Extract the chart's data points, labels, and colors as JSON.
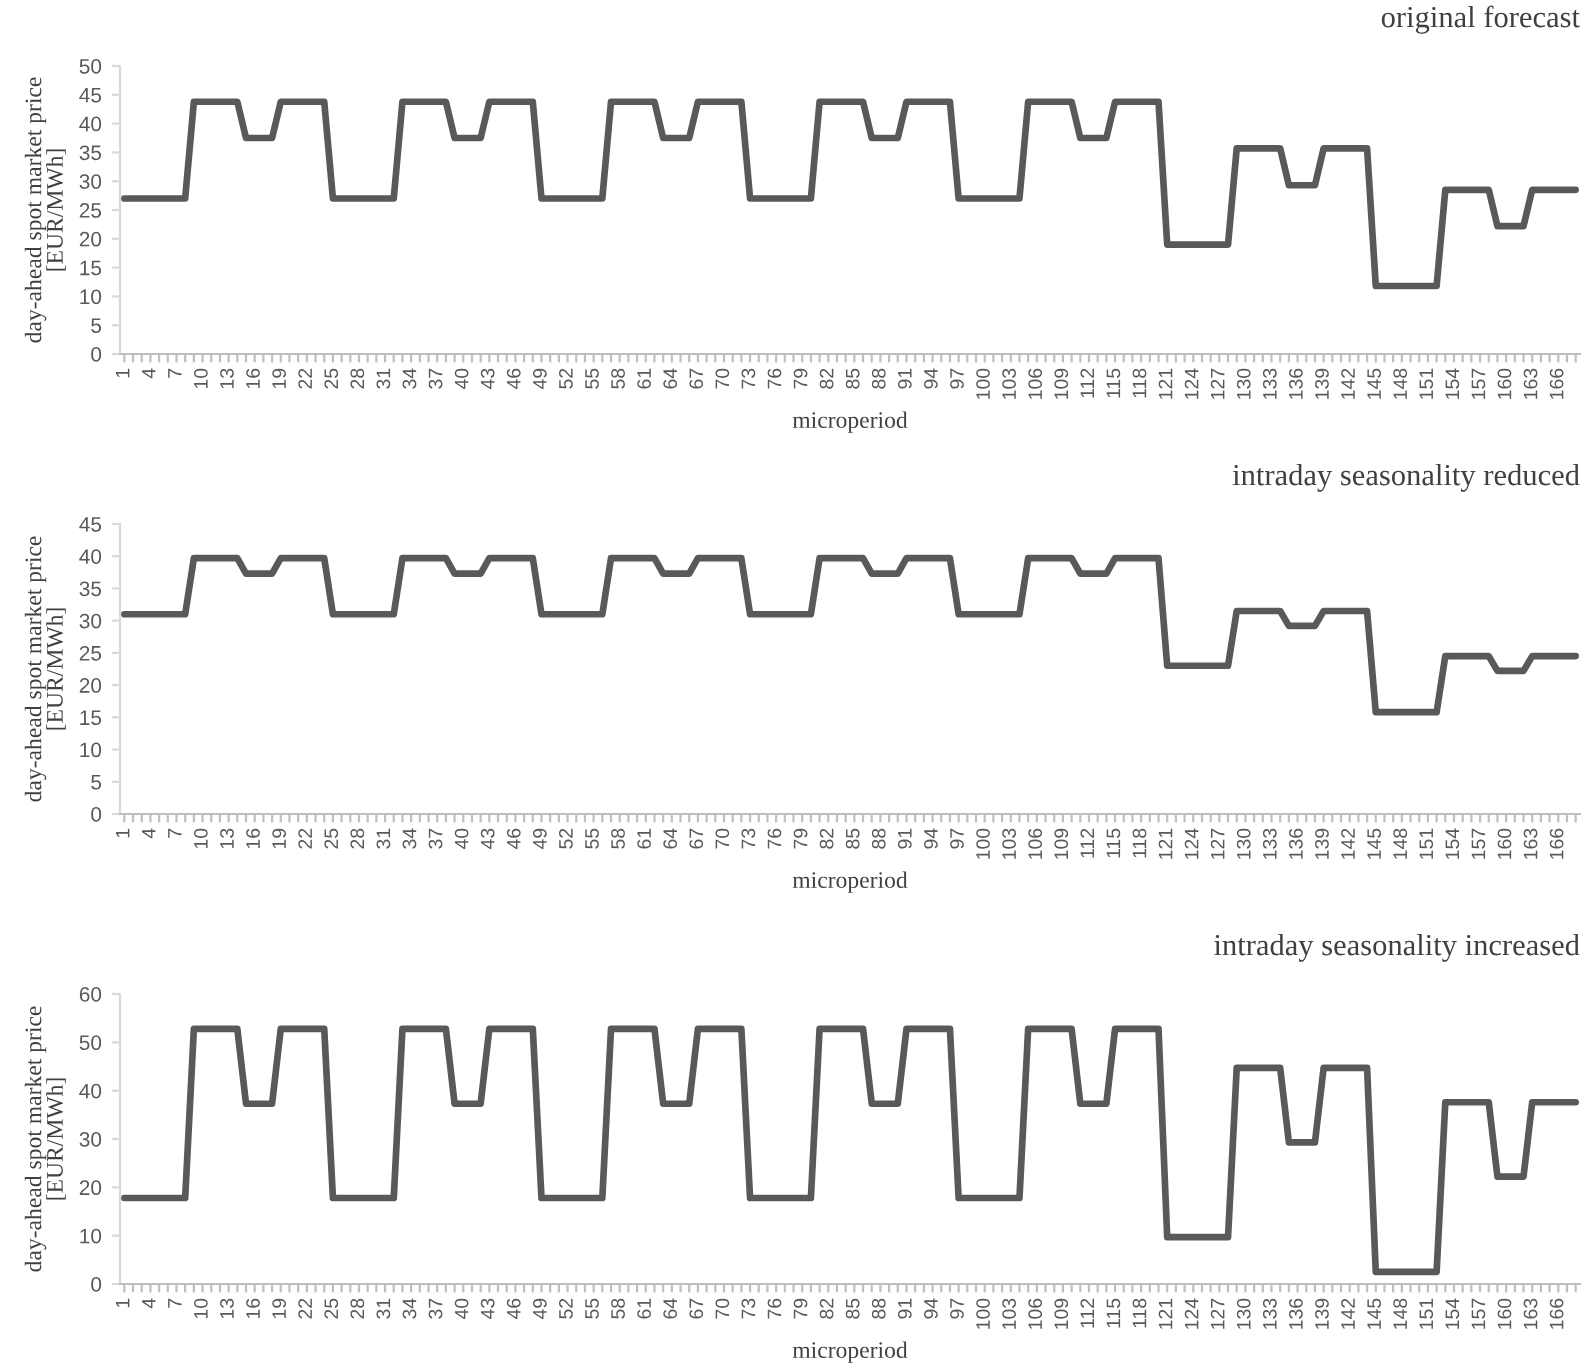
{
  "chart_data": [
    {
      "type": "line",
      "title": "original forecast",
      "xlabel": "microperiod",
      "ylabel": "day-ahead spot market price\n[EUR/MWh]",
      "categories": [
        "1",
        null,
        null,
        "4",
        null,
        null,
        "7",
        null,
        null,
        "10",
        null,
        null,
        "13",
        null,
        null,
        "16",
        null,
        null,
        "19",
        null,
        null,
        "22",
        null,
        null,
        "25",
        null,
        null,
        "28",
        null,
        null,
        "31",
        null,
        null,
        "34",
        null,
        null,
        "37",
        null,
        null,
        "40",
        null,
        null,
        "43",
        null,
        null,
        "46",
        null,
        null,
        "49",
        null,
        null,
        "52",
        null,
        null,
        "55",
        null,
        null,
        "58",
        null,
        null,
        "61",
        null,
        null,
        "64",
        null,
        null,
        "67",
        null,
        null,
        "70",
        null,
        null,
        "73",
        null,
        null,
        "76",
        null,
        null,
        "79",
        null,
        null,
        "82",
        null,
        null,
        "85",
        null,
        null,
        "88",
        null,
        null,
        "91",
        null,
        null,
        "94",
        null,
        null,
        "97",
        null,
        null,
        "100",
        null,
        null,
        "103",
        null,
        null,
        "106",
        null,
        null,
        "109",
        null,
        null,
        "112",
        null,
        null,
        "115",
        null,
        null,
        "118",
        null,
        null,
        "121",
        null,
        null,
        "124",
        null,
        null,
        "127",
        null,
        null,
        "130",
        null,
        null,
        "133",
        null,
        null,
        "136",
        null,
        null,
        "139",
        null,
        null,
        "142",
        null,
        null,
        "145",
        null,
        null,
        "148",
        null,
        null,
        "151",
        null,
        null,
        "154",
        null,
        null,
        "157",
        null,
        null,
        "160",
        null,
        null,
        "163",
        null,
        null,
        "166",
        null,
        null
      ],
      "series": [
        {
          "color": "#595959",
          "values": [
            27,
            27,
            27,
            27,
            27,
            27,
            27,
            27,
            43.8,
            43.8,
            43.8,
            43.8,
            43.8,
            43.8,
            37.5,
            37.5,
            37.5,
            37.5,
            43.8,
            43.8,
            43.8,
            43.8,
            43.8,
            43.8,
            27,
            27,
            27,
            27,
            27,
            27,
            27,
            27,
            43.8,
            43.8,
            43.8,
            43.8,
            43.8,
            43.8,
            37.5,
            37.5,
            37.5,
            37.5,
            43.8,
            43.8,
            43.8,
            43.8,
            43.8,
            43.8,
            27,
            27,
            27,
            27,
            27,
            27,
            27,
            27,
            43.8,
            43.8,
            43.8,
            43.8,
            43.8,
            43.8,
            37.5,
            37.5,
            37.5,
            37.5,
            43.8,
            43.8,
            43.8,
            43.8,
            43.8,
            43.8,
            27,
            27,
            27,
            27,
            27,
            27,
            27,
            27,
            43.8,
            43.8,
            43.8,
            43.8,
            43.8,
            43.8,
            37.5,
            37.5,
            37.5,
            37.5,
            43.8,
            43.8,
            43.8,
            43.8,
            43.8,
            43.8,
            27,
            27,
            27,
            27,
            27,
            27,
            27,
            27,
            43.8,
            43.8,
            43.8,
            43.8,
            43.8,
            43.8,
            37.5,
            37.5,
            37.5,
            37.5,
            43.8,
            43.8,
            43.8,
            43.8,
            43.8,
            43.8,
            19,
            19,
            19,
            19,
            19,
            19,
            19,
            19,
            35.7,
            35.7,
            35.7,
            35.7,
            35.7,
            35.7,
            29.3,
            29.3,
            29.3,
            29.3,
            35.7,
            35.7,
            35.7,
            35.7,
            35.7,
            35.7,
            11.8,
            11.8,
            11.8,
            11.8,
            11.8,
            11.8,
            11.8,
            11.8,
            28.5,
            28.5,
            28.5,
            28.5,
            28.5,
            28.5,
            22.2,
            22.2,
            22.2,
            22.2,
            28.5,
            28.5,
            28.5,
            28.5,
            28.5,
            28.5
          ]
        }
      ],
      "ylim": [
        0,
        50
      ],
      "yticks": [
        0,
        5,
        10,
        15,
        20,
        25,
        30,
        35,
        40,
        45,
        50
      ]
    },
    {
      "type": "line",
      "title": "intraday seasonality reduced",
      "xlabel": "microperiod",
      "ylabel": "day-ahead spot market price\n[EUR/MWh]",
      "categories": [
        "1",
        null,
        null,
        "4",
        null,
        null,
        "7",
        null,
        null,
        "10",
        null,
        null,
        "13",
        null,
        null,
        "16",
        null,
        null,
        "19",
        null,
        null,
        "22",
        null,
        null,
        "25",
        null,
        null,
        "28",
        null,
        null,
        "31",
        null,
        null,
        "34",
        null,
        null,
        "37",
        null,
        null,
        "40",
        null,
        null,
        "43",
        null,
        null,
        "46",
        null,
        null,
        "49",
        null,
        null,
        "52",
        null,
        null,
        "55",
        null,
        null,
        "58",
        null,
        null,
        "61",
        null,
        null,
        "64",
        null,
        null,
        "67",
        null,
        null,
        "70",
        null,
        null,
        "73",
        null,
        null,
        "76",
        null,
        null,
        "79",
        null,
        null,
        "82",
        null,
        null,
        "85",
        null,
        null,
        "88",
        null,
        null,
        "91",
        null,
        null,
        "94",
        null,
        null,
        "97",
        null,
        null,
        "100",
        null,
        null,
        "103",
        null,
        null,
        "106",
        null,
        null,
        "109",
        null,
        null,
        "112",
        null,
        null,
        "115",
        null,
        null,
        "118",
        null,
        null,
        "121",
        null,
        null,
        "124",
        null,
        null,
        "127",
        null,
        null,
        "130",
        null,
        null,
        "133",
        null,
        null,
        "136",
        null,
        null,
        "139",
        null,
        null,
        "142",
        null,
        null,
        "145",
        null,
        null,
        "148",
        null,
        null,
        "151",
        null,
        null,
        "154",
        null,
        null,
        "157",
        null,
        null,
        "160",
        null,
        null,
        "163",
        null,
        null,
        "166",
        null,
        null
      ],
      "series": [
        {
          "color": "#595959",
          "values": [
            31,
            31,
            31,
            31,
            31,
            31,
            31,
            31,
            39.7,
            39.7,
            39.7,
            39.7,
            39.7,
            39.7,
            37.3,
            37.3,
            37.3,
            37.3,
            39.7,
            39.7,
            39.7,
            39.7,
            39.7,
            39.7,
            31,
            31,
            31,
            31,
            31,
            31,
            31,
            31,
            39.7,
            39.7,
            39.7,
            39.7,
            39.7,
            39.7,
            37.3,
            37.3,
            37.3,
            37.3,
            39.7,
            39.7,
            39.7,
            39.7,
            39.7,
            39.7,
            31,
            31,
            31,
            31,
            31,
            31,
            31,
            31,
            39.7,
            39.7,
            39.7,
            39.7,
            39.7,
            39.7,
            37.3,
            37.3,
            37.3,
            37.3,
            39.7,
            39.7,
            39.7,
            39.7,
            39.7,
            39.7,
            31,
            31,
            31,
            31,
            31,
            31,
            31,
            31,
            39.7,
            39.7,
            39.7,
            39.7,
            39.7,
            39.7,
            37.3,
            37.3,
            37.3,
            37.3,
            39.7,
            39.7,
            39.7,
            39.7,
            39.7,
            39.7,
            31,
            31,
            31,
            31,
            31,
            31,
            31,
            31,
            39.7,
            39.7,
            39.7,
            39.7,
            39.7,
            39.7,
            37.3,
            37.3,
            37.3,
            37.3,
            39.7,
            39.7,
            39.7,
            39.7,
            39.7,
            39.7,
            23,
            23,
            23,
            23,
            23,
            23,
            23,
            23,
            31.5,
            31.5,
            31.5,
            31.5,
            31.5,
            31.5,
            29.2,
            29.2,
            29.2,
            29.2,
            31.5,
            31.5,
            31.5,
            31.5,
            31.5,
            31.5,
            15.8,
            15.8,
            15.8,
            15.8,
            15.8,
            15.8,
            15.8,
            15.8,
            24.5,
            24.5,
            24.5,
            24.5,
            24.5,
            24.5,
            22.2,
            22.2,
            22.2,
            22.2,
            24.5,
            24.5,
            24.5,
            24.5,
            24.5,
            24.5
          ]
        }
      ],
      "ylim": [
        0,
        45
      ],
      "yticks": [
        0,
        5,
        10,
        15,
        20,
        25,
        30,
        35,
        40,
        45
      ]
    },
    {
      "type": "line",
      "title": "intraday seasonality increased",
      "xlabel": "microperiod",
      "ylabel": "day-ahead spot market price\n[EUR/MWh]",
      "categories": [
        "1",
        null,
        null,
        "4",
        null,
        null,
        "7",
        null,
        null,
        "10",
        null,
        null,
        "13",
        null,
        null,
        "16",
        null,
        null,
        "19",
        null,
        null,
        "22",
        null,
        null,
        "25",
        null,
        null,
        "28",
        null,
        null,
        "31",
        null,
        null,
        "34",
        null,
        null,
        "37",
        null,
        null,
        "40",
        null,
        null,
        "43",
        null,
        null,
        "46",
        null,
        null,
        "49",
        null,
        null,
        "52",
        null,
        null,
        "55",
        null,
        null,
        "58",
        null,
        null,
        "61",
        null,
        null,
        "64",
        null,
        null,
        "67",
        null,
        null,
        "70",
        null,
        null,
        "73",
        null,
        null,
        "76",
        null,
        null,
        "79",
        null,
        null,
        "82",
        null,
        null,
        "85",
        null,
        null,
        "88",
        null,
        null,
        "91",
        null,
        null,
        "94",
        null,
        null,
        "97",
        null,
        null,
        "100",
        null,
        null,
        "103",
        null,
        null,
        "106",
        null,
        null,
        "109",
        null,
        null,
        "112",
        null,
        null,
        "115",
        null,
        null,
        "118",
        null,
        null,
        "121",
        null,
        null,
        "124",
        null,
        null,
        "127",
        null,
        null,
        "130",
        null,
        null,
        "133",
        null,
        null,
        "136",
        null,
        null,
        "139",
        null,
        null,
        "142",
        null,
        null,
        "145",
        null,
        null,
        "148",
        null,
        null,
        "151",
        null,
        null,
        "154",
        null,
        null,
        "157",
        null,
        null,
        "160",
        null,
        null,
        "163",
        null,
        null,
        "166",
        null,
        null
      ],
      "series": [
        {
          "color": "#595959",
          "values": [
            17.8,
            17.8,
            17.8,
            17.8,
            17.8,
            17.8,
            17.8,
            17.8,
            52.8,
            52.8,
            52.8,
            52.8,
            52.8,
            52.8,
            37.3,
            37.3,
            37.3,
            37.3,
            52.8,
            52.8,
            52.8,
            52.8,
            52.8,
            52.8,
            17.8,
            17.8,
            17.8,
            17.8,
            17.8,
            17.8,
            17.8,
            17.8,
            52.8,
            52.8,
            52.8,
            52.8,
            52.8,
            52.8,
            37.3,
            37.3,
            37.3,
            37.3,
            52.8,
            52.8,
            52.8,
            52.8,
            52.8,
            52.8,
            17.8,
            17.8,
            17.8,
            17.8,
            17.8,
            17.8,
            17.8,
            17.8,
            52.8,
            52.8,
            52.8,
            52.8,
            52.8,
            52.8,
            37.3,
            37.3,
            37.3,
            37.3,
            52.8,
            52.8,
            52.8,
            52.8,
            52.8,
            52.8,
            17.8,
            17.8,
            17.8,
            17.8,
            17.8,
            17.8,
            17.8,
            17.8,
            52.8,
            52.8,
            52.8,
            52.8,
            52.8,
            52.8,
            37.3,
            37.3,
            37.3,
            37.3,
            52.8,
            52.8,
            52.8,
            52.8,
            52.8,
            52.8,
            17.8,
            17.8,
            17.8,
            17.8,
            17.8,
            17.8,
            17.8,
            17.8,
            52.8,
            52.8,
            52.8,
            52.8,
            52.8,
            52.8,
            37.3,
            37.3,
            37.3,
            37.3,
            52.8,
            52.8,
            52.8,
            52.8,
            52.8,
            52.8,
            9.7,
            9.7,
            9.7,
            9.7,
            9.7,
            9.7,
            9.7,
            9.7,
            44.7,
            44.7,
            44.7,
            44.7,
            44.7,
            44.7,
            29.3,
            29.3,
            29.3,
            29.3,
            44.7,
            44.7,
            44.7,
            44.7,
            44.7,
            44.7,
            2.5,
            2.5,
            2.5,
            2.5,
            2.5,
            2.5,
            2.5,
            2.5,
            37.6,
            37.6,
            37.6,
            37.6,
            37.6,
            37.6,
            22.2,
            22.2,
            22.2,
            22.2,
            37.6,
            37.6,
            37.6,
            37.6,
            37.6,
            37.6
          ]
        }
      ],
      "ylim": [
        0,
        60
      ],
      "yticks": [
        0,
        10,
        20,
        30,
        40,
        50,
        60
      ]
    }
  ]
}
